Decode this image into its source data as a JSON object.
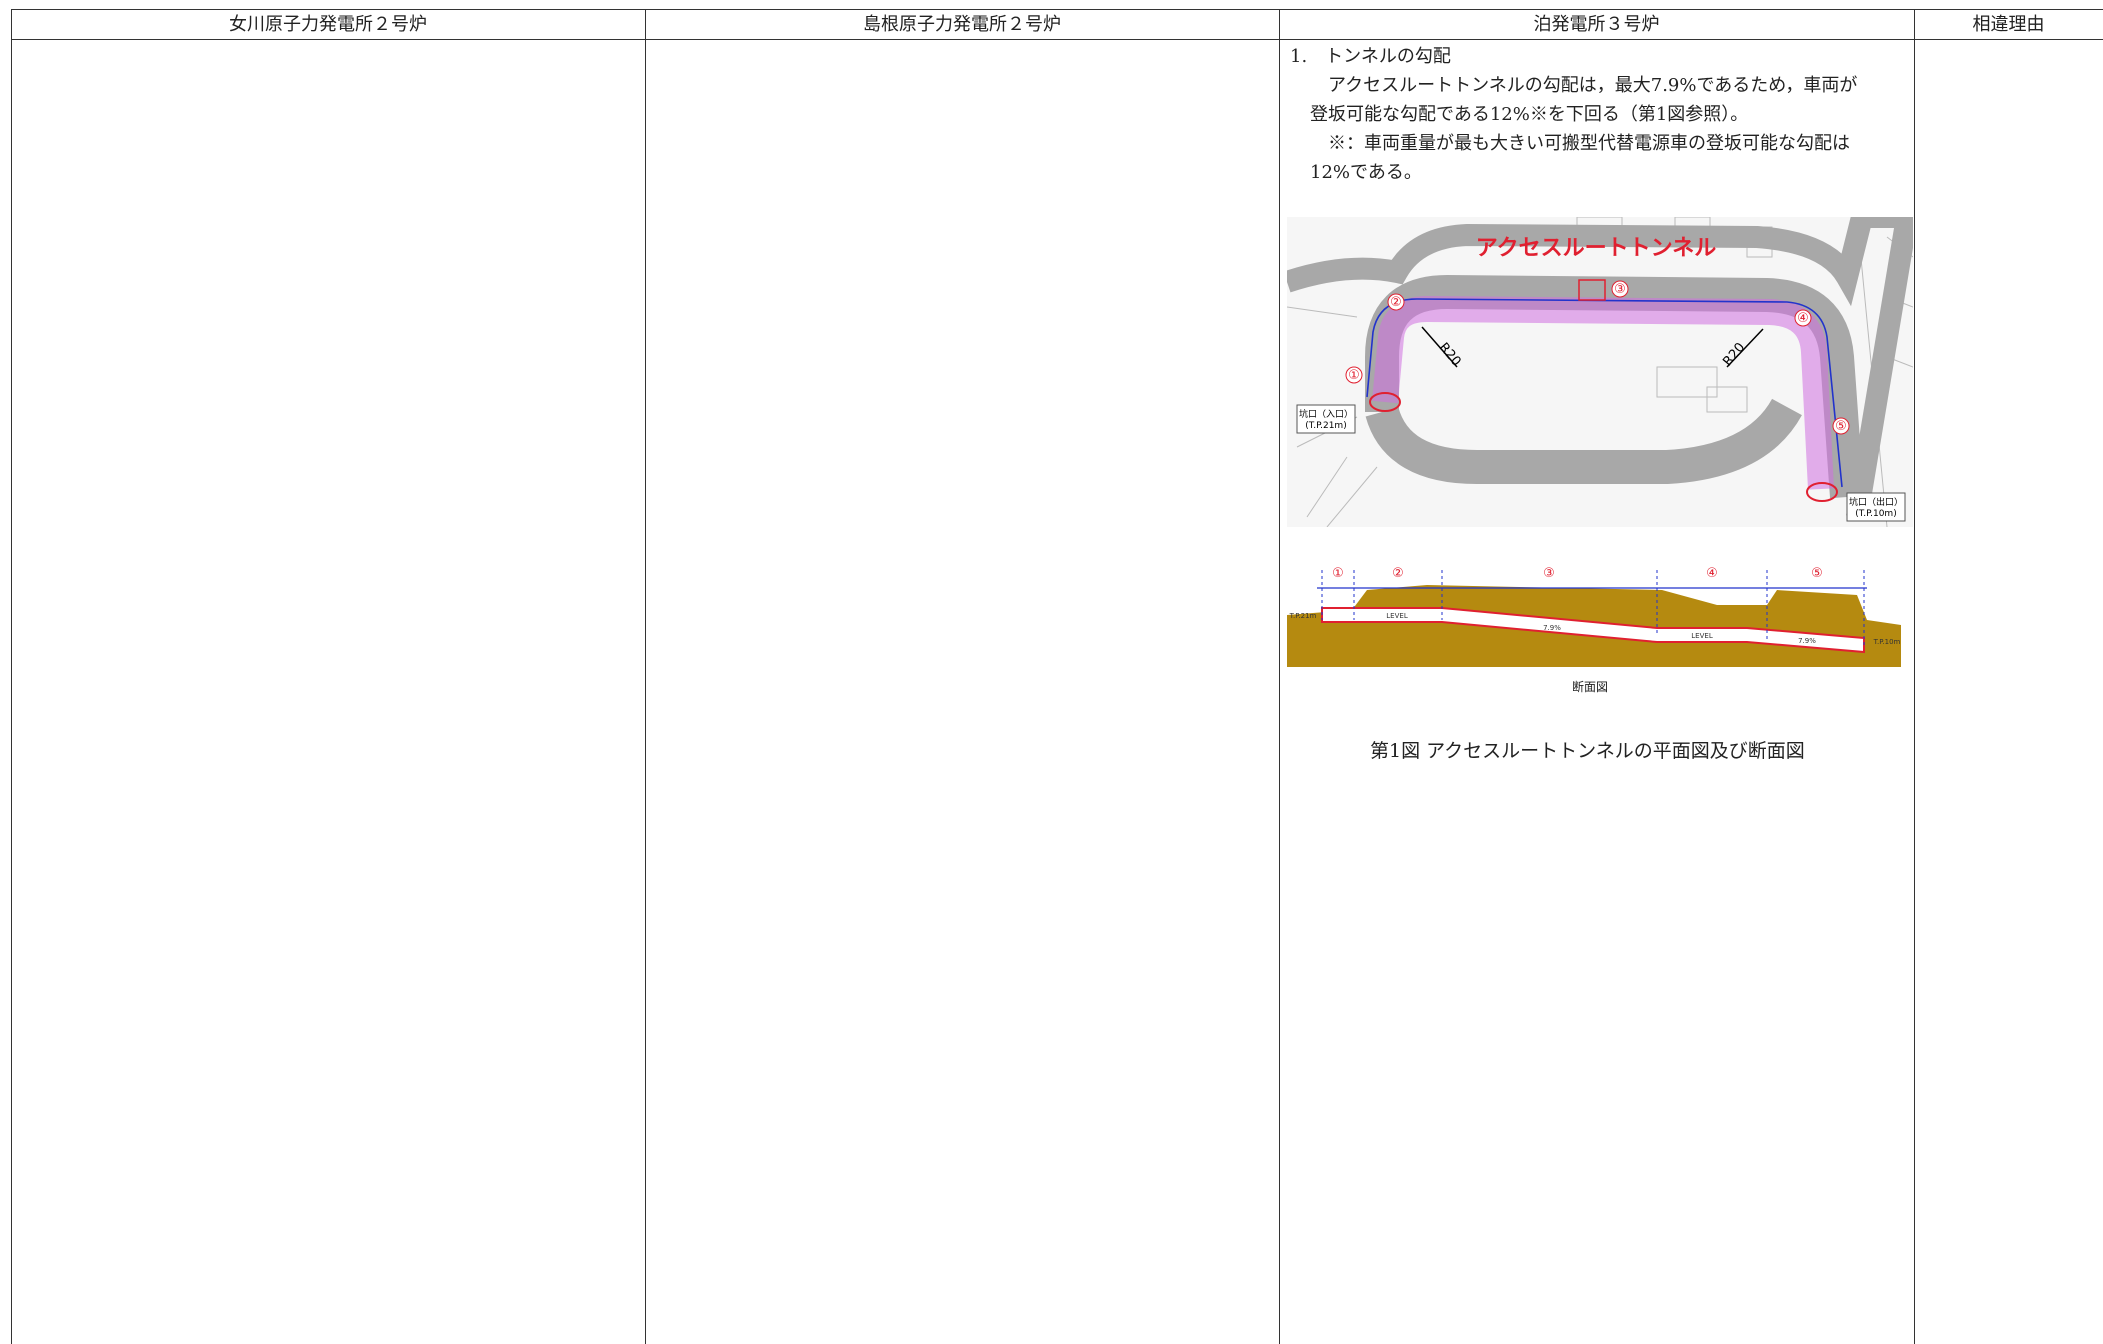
{
  "header": {
    "columns": [
      "女川原子力発電所２号炉",
      "島根原子力発電所２号炉",
      "泊発電所３号炉",
      "相違理由"
    ]
  },
  "content": {
    "heading": "1.　トンネルの勾配",
    "paragraph": [
      "アクセスルートトンネルの勾配は，最大7.9%であるため，車両が",
      "登坂可能な勾配である12%※を下回る（第1図参照）。"
    ],
    "note": [
      "※：車両重量が最も大きい可搬型代替電源車の登坂可能な勾配は",
      "12%である。"
    ]
  },
  "figure": {
    "plan": {
      "title": "アクセスルートトンネル",
      "sections": [
        "①",
        "②",
        "③",
        "④",
        "⑤"
      ],
      "radius": [
        "R20",
        "R20"
      ],
      "entrance": [
        "坑口（入口）",
        "(T.P.21m)"
      ],
      "exit": [
        "坑口（出口）",
        "(T.P.10m)"
      ]
    },
    "section": {
      "sections": [
        "①",
        "②",
        "③",
        "④",
        "⑤"
      ],
      "levels": [
        "T.P.21m",
        "LEVEL",
        "7.9%",
        "LEVEL",
        "7.9%",
        "T.P.10m"
      ],
      "label": "断面図"
    },
    "caption": "第1図 アクセスルートトンネルの平面図及び断面図"
  }
}
